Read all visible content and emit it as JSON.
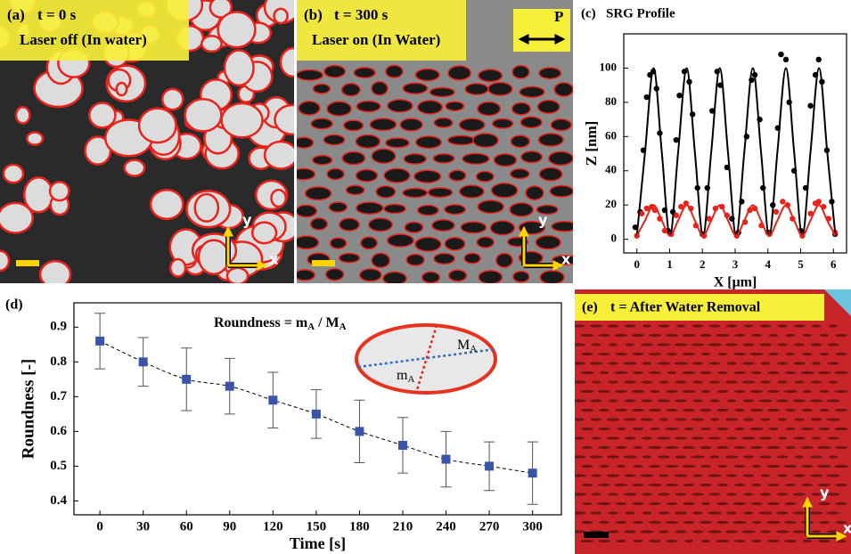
{
  "panels": [
    {
      "label": "(a)",
      "title": "t = 0 s",
      "subtitle": "Laser off  (In water)"
    },
    {
      "label": "(b)",
      "title": "t = 300 s",
      "subtitle": "Laser on (In Water)",
      "polarization": "P"
    },
    {
      "label": "(e)",
      "title": "t = After Water Removal"
    }
  ],
  "axis_arrows": {
    "x": "x",
    "y": "y"
  },
  "chart_data": [
    {
      "type": "line",
      "label": "(c)",
      "title": "SRG Profile",
      "xlabel": "X [μm]",
      "ylabel": "Z [nm]",
      "xlim": [
        -0.4,
        6.4
      ],
      "ylim": [
        -8,
        120
      ],
      "xticks": [
        0,
        1,
        2,
        3,
        4,
        5,
        6
      ],
      "yticks": [
        0,
        20,
        40,
        60,
        80,
        100
      ],
      "series": [
        {
          "color": "#000000",
          "mode": "markers",
          "x": [
            -0.05,
            0.1,
            0.2,
            0.3,
            0.4,
            0.5,
            0.6,
            0.7,
            0.85,
            0.95,
            1.1,
            1.2,
            1.3,
            1.45,
            1.6,
            1.7,
            1.85,
            2.0,
            2.15,
            2.3,
            2.45,
            2.55,
            2.75,
            2.9,
            3.1,
            3.2,
            3.35,
            3.5,
            3.6,
            3.75,
            3.85,
            4.0,
            4.15,
            4.3,
            4.4,
            4.55,
            4.65,
            4.8,
            5.0,
            5.15,
            5.3,
            5.45,
            5.55,
            5.65,
            5.8,
            5.95,
            6.05
          ],
          "values": [
            7,
            16,
            52,
            83,
            96,
            98,
            88,
            62,
            17,
            5,
            16,
            58,
            84,
            98,
            92,
            73,
            30,
            3,
            30,
            75,
            98,
            90,
            42,
            12,
            4,
            22,
            60,
            93,
            96,
            70,
            30,
            4,
            20,
            65,
            108,
            105,
            80,
            40,
            5,
            30,
            78,
            96,
            105,
            92,
            52,
            22,
            3
          ]
        },
        {
          "color": "#e8231c",
          "mode": "markers",
          "x": [
            0,
            0.15,
            0.3,
            0.45,
            0.55,
            0.7,
            0.85,
            1.05,
            1.2,
            1.35,
            1.5,
            1.65,
            1.8,
            2.05,
            2.2,
            2.4,
            2.6,
            2.75,
            3.05,
            3.3,
            3.45,
            3.6,
            3.8,
            4.05,
            4.25,
            4.45,
            4.6,
            4.75,
            5.05,
            5.3,
            5.45,
            5.55,
            5.7,
            5.85,
            6.05
          ],
          "values": [
            2,
            15,
            18,
            19,
            17,
            12,
            5,
            3,
            14,
            19,
            21,
            18,
            8,
            2,
            12,
            18,
            19,
            14,
            2,
            10,
            17,
            18,
            8,
            3,
            16,
            22,
            20,
            12,
            2,
            15,
            21,
            22,
            19,
            12,
            4
          ]
        },
        {
          "color": "#000000",
          "mode": "line",
          "x": [
            0,
            0.25,
            0.51,
            0.76,
            1.01,
            1.26,
            1.52,
            1.77,
            2.02,
            2.27,
            2.53,
            2.78,
            3.03,
            3.28,
            3.54,
            3.79,
            4.04,
            4.29,
            4.55,
            4.8,
            5.05,
            5.3,
            5.56,
            5.81,
            6.06
          ],
          "values": [
            2,
            51,
            100,
            51,
            2,
            51,
            100,
            51,
            2,
            51,
            100,
            51,
            2,
            51,
            100,
            51,
            2,
            51,
            100,
            51,
            2,
            51,
            100,
            51,
            2
          ]
        },
        {
          "color": "#e8231c",
          "mode": "line",
          "x": [
            0,
            0.25,
            0.51,
            0.76,
            1.01,
            1.26,
            1.52,
            1.77,
            2.02,
            2.27,
            2.53,
            2.78,
            3.03,
            3.28,
            3.54,
            3.79,
            4.04,
            4.29,
            4.55,
            4.8,
            5.05,
            5.3,
            5.56,
            5.81,
            6.06
          ],
          "values": [
            2,
            11,
            20,
            11,
            2,
            11,
            20,
            11,
            2,
            11,
            20,
            11,
            2,
            11,
            20,
            11,
            2,
            11,
            20,
            11,
            2,
            11,
            20,
            11,
            2
          ]
        }
      ]
    },
    {
      "type": "line",
      "label": "(d)",
      "xlabel": "Time [s]",
      "ylabel": "Roundness [-]",
      "annotation": [
        "Roundness = m",
        "A",
        " / M",
        "A"
      ],
      "ellipse_labels": [
        [
          "M",
          "A"
        ],
        [
          "m",
          "A"
        ]
      ],
      "xlim": [
        -18,
        320
      ],
      "ylim": [
        0.36,
        0.97
      ],
      "xticks": [
        0,
        30,
        60,
        90,
        120,
        150,
        180,
        210,
        240,
        270,
        300
      ],
      "yticks": [
        0.4,
        0.5,
        0.6,
        0.7,
        0.8,
        0.9
      ],
      "series": [
        {
          "color": "#3a55a8",
          "x": [
            0,
            30,
            60,
            90,
            120,
            150,
            180,
            210,
            240,
            270,
            300
          ],
          "values": [
            0.86,
            0.8,
            0.75,
            0.73,
            0.69,
            0.65,
            0.6,
            0.56,
            0.52,
            0.5,
            0.48
          ],
          "errors": [
            0.08,
            0.07,
            0.09,
            0.08,
            0.08,
            0.07,
            0.09,
            0.08,
            0.08,
            0.07,
            0.09
          ]
        }
      ]
    }
  ]
}
